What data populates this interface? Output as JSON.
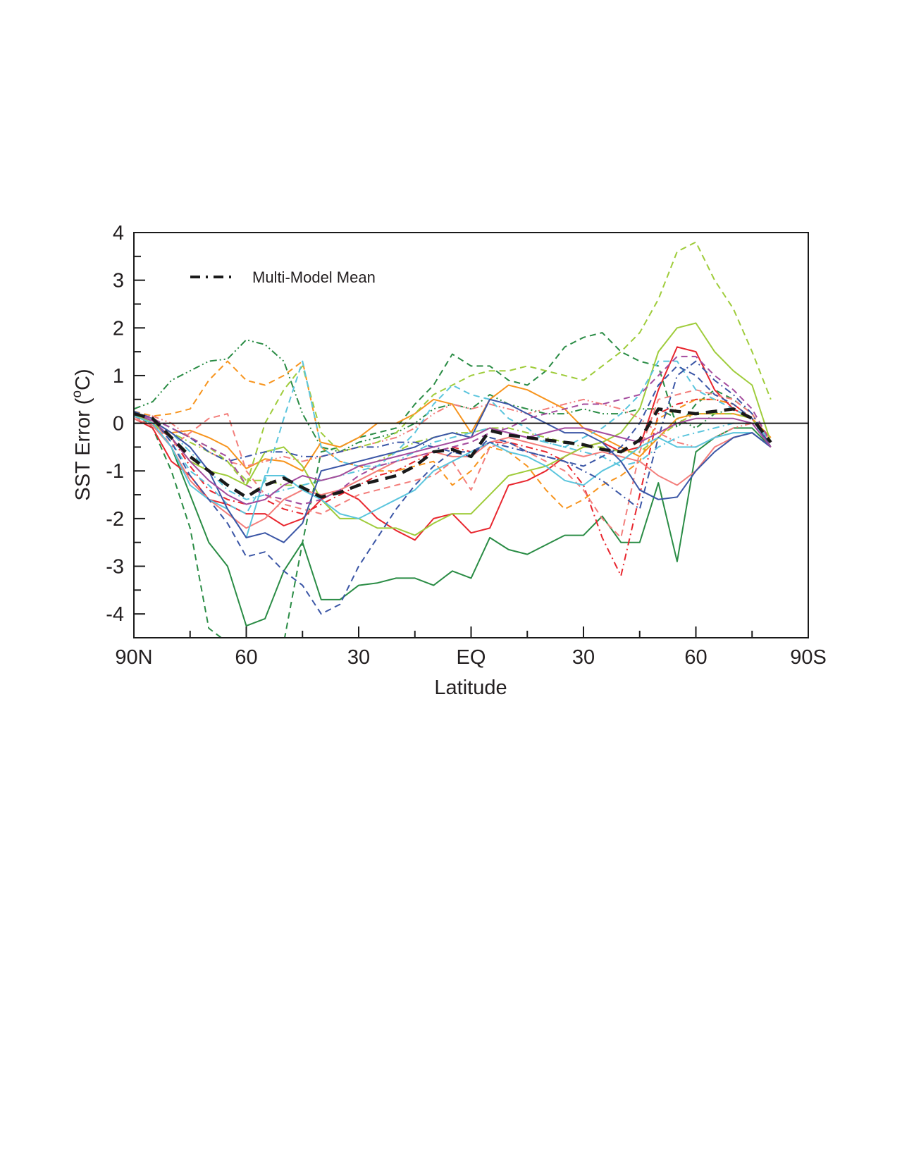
{
  "chart_data": {
    "type": "line",
    "xlabel": "Latitude",
    "ylabel_main": "SST Error (",
    "ylabel_sup": "o",
    "ylabel_end": "C)",
    "xlim": [
      90,
      -90
    ],
    "ylim": [
      -4.5,
      4
    ],
    "x_ticks": [
      {
        "value": 90,
        "label": "90N"
      },
      {
        "value": 60,
        "label": "60"
      },
      {
        "value": 30,
        "label": "30"
      },
      {
        "value": 0,
        "label": "EQ"
      },
      {
        "value": -30,
        "label": "30"
      },
      {
        "value": -60,
        "label": "60"
      },
      {
        "value": -90,
        "label": "90S"
      }
    ],
    "y_ticks": [
      {
        "value": 4,
        "label": "4"
      },
      {
        "value": 3,
        "label": "3"
      },
      {
        "value": 2,
        "label": "2"
      },
      {
        "value": 1,
        "label": "1"
      },
      {
        "value": 0,
        "label": "0"
      },
      {
        "value": -1,
        "label": "-1"
      },
      {
        "value": -2,
        "label": "-2"
      },
      {
        "value": -3,
        "label": "-3"
      },
      {
        "value": -4,
        "label": "-4"
      }
    ],
    "legend": {
      "label": "Multi-Model Mean",
      "position": "top-left"
    },
    "x": [
      90,
      85,
      80,
      75,
      70,
      65,
      60,
      55,
      50,
      45,
      40,
      35,
      30,
      25,
      20,
      15,
      10,
      5,
      0,
      -5,
      -10,
      -15,
      -20,
      -25,
      -30,
      -35,
      -40,
      -45,
      -50,
      -55,
      -60,
      -65,
      -70,
      -75,
      -80
    ],
    "mean": {
      "color": "#1a1a1a",
      "style": "dashed-bold",
      "values": [
        0.2,
        0.1,
        -0.3,
        -0.7,
        -1.0,
        -1.3,
        -1.55,
        -1.3,
        -1.15,
        -1.35,
        -1.55,
        -1.45,
        -1.3,
        -1.2,
        -1.1,
        -0.9,
        -0.6,
        -0.55,
        -0.7,
        -0.15,
        -0.25,
        -0.3,
        -0.35,
        -0.4,
        -0.45,
        -0.55,
        -0.6,
        -0.35,
        0.3,
        0.25,
        0.2,
        0.25,
        0.3,
        0.1,
        -0.4
      ]
    },
    "series": [
      {
        "color": "#2a8c45",
        "style": "solid",
        "values": [
          0.2,
          0.0,
          -0.5,
          -1.5,
          -2.5,
          -3.0,
          -4.25,
          -4.1,
          -3.1,
          -2.5,
          -3.7,
          -3.7,
          -3.4,
          -3.35,
          -3.25,
          -3.25,
          -3.4,
          -3.1,
          -3.25,
          -2.4,
          -2.65,
          -2.75,
          -2.55,
          -2.35,
          -2.35,
          -1.95,
          -2.5,
          -2.5,
          -1.25,
          -2.9,
          -0.6,
          -0.3,
          -0.1,
          -0.1,
          -0.5
        ]
      },
      {
        "color": "#2a8c45",
        "style": "dashed",
        "values": [
          0.25,
          -0.1,
          -1.0,
          -2.2,
          -4.3,
          -4.6,
          -4.6,
          -4.6,
          -4.6,
          -2.5,
          -0.6,
          -0.5,
          -0.3,
          -0.2,
          -0.1,
          0.4,
          0.8,
          1.45,
          1.2,
          1.2,
          0.9,
          0.8,
          1.1,
          1.6,
          1.8,
          1.9,
          1.5,
          1.3,
          1.2,
          -0.1,
          0.4,
          0.7,
          0.5,
          0.2,
          -0.4
        ]
      },
      {
        "color": "#2a8c45",
        "style": "dashdotdot",
        "values": [
          0.3,
          0.45,
          0.9,
          1.1,
          1.3,
          1.35,
          1.75,
          1.65,
          1.3,
          0.2,
          -0.5,
          -0.6,
          -0.4,
          -0.3,
          -0.2,
          0.0,
          0.3,
          0.4,
          0.3,
          0.6,
          0.4,
          0.3,
          0.2,
          0.2,
          0.3,
          0.2,
          0.2,
          0.3,
          0.3,
          0.1,
          -0.1,
          0.2,
          0.3,
          0.1,
          -0.4
        ]
      },
      {
        "color": "#e8262e",
        "style": "solid",
        "values": [
          0.1,
          -0.1,
          -0.8,
          -1.1,
          -1.6,
          -1.7,
          -1.9,
          -1.9,
          -2.15,
          -2.0,
          -1.6,
          -1.4,
          -1.6,
          -2.0,
          -2.25,
          -2.45,
          -2.0,
          -1.9,
          -2.3,
          -2.2,
          -1.3,
          -1.2,
          -1.0,
          -0.7,
          -0.5,
          -0.4,
          -0.6,
          -0.5,
          0.7,
          1.6,
          1.5,
          0.7,
          0.3,
          0.1,
          -0.5
        ]
      },
      {
        "color": "#e8262e",
        "style": "dashdot",
        "values": [
          0.15,
          -0.05,
          -0.3,
          -0.9,
          -1.4,
          -1.6,
          -1.7,
          -1.6,
          -1.8,
          -1.9,
          -1.7,
          -1.5,
          -1.3,
          -1.1,
          -1.0,
          -0.8,
          -0.6,
          -0.5,
          -0.6,
          -0.4,
          -0.4,
          -0.5,
          -0.6,
          -0.8,
          -1.3,
          -2.4,
          -3.2,
          -1.5,
          0.2,
          0.4,
          0.5,
          0.5,
          0.4,
          0.1,
          -0.5
        ]
      },
      {
        "color": "#f7941d",
        "style": "solid",
        "values": [
          0.2,
          0.05,
          -0.2,
          -0.15,
          -0.3,
          -0.5,
          -0.95,
          -0.75,
          -0.8,
          -1.0,
          -0.4,
          -0.5,
          -0.3,
          0.0,
          0.0,
          0.2,
          0.5,
          0.4,
          -0.2,
          0.5,
          0.8,
          0.7,
          0.5,
          0.3,
          -0.1,
          -0.3,
          -0.5,
          -0.7,
          -0.3,
          0.1,
          0.2,
          0.2,
          0.2,
          0.1,
          -0.3
        ]
      },
      {
        "color": "#f7941d",
        "style": "dashed",
        "values": [
          0.25,
          0.15,
          0.2,
          0.3,
          0.9,
          1.3,
          0.9,
          0.8,
          1.0,
          1.3,
          -0.5,
          -0.8,
          -0.9,
          -1.0,
          -1.0,
          -0.9,
          -0.8,
          -1.3,
          -1.0,
          -0.5,
          -0.6,
          -0.9,
          -1.4,
          -1.8,
          -1.6,
          -1.3,
          -1.1,
          -0.8,
          0.1,
          0.3,
          0.5,
          0.5,
          0.4,
          0.1,
          -0.4
        ]
      },
      {
        "color": "#f37e7b",
        "style": "solid",
        "values": [
          0.1,
          -0.05,
          -0.5,
          -1.2,
          -1.6,
          -1.9,
          -2.2,
          -2.0,
          -1.6,
          -1.4,
          -1.5,
          -1.4,
          -1.2,
          -1.0,
          -0.8,
          -0.7,
          -0.6,
          -0.7,
          -0.7,
          -0.4,
          -0.3,
          -0.4,
          -0.5,
          -0.6,
          -0.7,
          -0.6,
          -0.7,
          -0.8,
          -1.1,
          -1.3,
          -1.0,
          -0.5,
          -0.3,
          -0.2,
          -0.5
        ]
      },
      {
        "color": "#f37e7b",
        "style": "dashed",
        "values": [
          0.2,
          0.1,
          -0.5,
          -0.2,
          0.1,
          0.2,
          -1.0,
          -1.5,
          -1.7,
          -1.8,
          -1.9,
          -1.7,
          -1.5,
          -1.4,
          -1.3,
          -1.2,
          -1.1,
          -0.8,
          -1.4,
          -0.5,
          -0.4,
          -0.6,
          -0.8,
          -1.0,
          -1.4,
          -2.0,
          -2.4,
          -0.6,
          0.5,
          0.6,
          0.7,
          0.6,
          0.5,
          0.2,
          -0.4
        ]
      },
      {
        "color": "#f37e7b",
        "style": "dashdotdot",
        "values": [
          0.2,
          0.15,
          0.0,
          -0.3,
          -0.6,
          -0.8,
          -0.9,
          -0.8,
          -0.7,
          -0.8,
          -0.7,
          -0.6,
          -0.5,
          -0.4,
          -0.3,
          -0.1,
          0.2,
          0.4,
          0.3,
          0.4,
          0.3,
          0.2,
          0.3,
          0.4,
          0.5,
          0.4,
          0.3,
          0.1,
          -0.2,
          -0.4,
          -0.5,
          -0.3,
          -0.1,
          0.0,
          -0.4
        ]
      },
      {
        "color": "#9fcc3b",
        "style": "solid",
        "values": [
          0.2,
          0.0,
          -0.3,
          -0.8,
          -1.0,
          -1.1,
          -1.3,
          -0.6,
          -0.5,
          -0.9,
          -1.6,
          -2.0,
          -2.0,
          -2.2,
          -2.2,
          -2.35,
          -2.1,
          -1.9,
          -1.9,
          -1.5,
          -1.1,
          -1.0,
          -0.9,
          -0.7,
          -0.5,
          -0.4,
          -0.2,
          0.3,
          1.5,
          2.0,
          2.1,
          1.5,
          1.1,
          0.8,
          -0.4
        ]
      },
      {
        "color": "#9fcc3b",
        "style": "dashed",
        "values": [
          0.2,
          0.1,
          -0.1,
          -0.3,
          -0.5,
          -0.8,
          -1.3,
          0.0,
          0.7,
          1.2,
          -0.2,
          -0.6,
          -0.5,
          -0.4,
          -0.2,
          0.2,
          0.6,
          0.8,
          1.0,
          1.1,
          1.1,
          1.2,
          1.1,
          1.0,
          0.9,
          1.2,
          1.5,
          1.9,
          2.6,
          3.6,
          3.8,
          3.0,
          2.4,
          1.5,
          0.5
        ]
      },
      {
        "color": "#9fcc3b",
        "style": "dashdot",
        "values": [
          0.15,
          0.05,
          -0.2,
          -0.4,
          -0.6,
          -0.8,
          -1.2,
          -1.2,
          -1.3,
          -1.3,
          -1.2,
          -1.1,
          -0.9,
          -0.8,
          -0.6,
          -0.4,
          -0.3,
          -0.2,
          -0.2,
          -0.1,
          -0.1,
          -0.2,
          -0.3,
          -0.4,
          -0.5,
          -0.5,
          -0.6,
          -0.6,
          -0.3,
          0.0,
          0.2,
          0.2,
          0.2,
          0.1,
          -0.5
        ]
      },
      {
        "color": "#5bc5dd",
        "style": "solid",
        "values": [
          0.15,
          0.0,
          -0.5,
          -1.3,
          -1.6,
          -1.8,
          -2.4,
          -1.1,
          -1.1,
          -1.4,
          -1.6,
          -1.9,
          -2.0,
          -1.8,
          -1.6,
          -1.4,
          -1.0,
          -0.8,
          -0.6,
          -0.4,
          -0.6,
          -0.7,
          -0.9,
          -1.2,
          -1.3,
          -1.0,
          -0.8,
          -0.5,
          -0.3,
          -0.5,
          -0.5,
          -0.3,
          -0.2,
          -0.2,
          -0.5
        ]
      },
      {
        "color": "#5bc5dd",
        "style": "dashed",
        "values": [
          0.2,
          0.1,
          -0.4,
          -1.0,
          -1.3,
          -1.7,
          -1.9,
          -1.2,
          0.1,
          1.3,
          -0.5,
          -0.8,
          -0.9,
          -0.9,
          -0.6,
          -0.2,
          0.4,
          0.8,
          0.6,
          0.5,
          0.1,
          -0.1,
          -0.4,
          -0.5,
          -0.3,
          -0.1,
          0.2,
          0.6,
          1.3,
          1.3,
          0.7,
          0.5,
          0.3,
          0.1,
          -0.4
        ]
      },
      {
        "color": "#5bc5dd",
        "style": "dashdot",
        "values": [
          0.2,
          0.05,
          -0.2,
          -0.6,
          -1.0,
          -1.4,
          -1.6,
          -1.5,
          -1.4,
          -1.3,
          -1.2,
          -1.1,
          -1.0,
          -0.9,
          -0.8,
          -0.6,
          -0.4,
          -0.3,
          -0.2,
          -0.1,
          -0.2,
          -0.3,
          -0.4,
          -0.5,
          -0.6,
          -0.7,
          -0.9,
          -0.8,
          -0.5,
          -0.3,
          -0.2,
          -0.1,
          0.0,
          0.0,
          -0.4
        ]
      },
      {
        "color": "#3b56a6",
        "style": "solid",
        "values": [
          0.2,
          0.05,
          -0.2,
          -0.5,
          -1.0,
          -1.8,
          -2.4,
          -2.3,
          -2.5,
          -2.1,
          -1.0,
          -0.9,
          -0.8,
          -0.7,
          -0.6,
          -0.5,
          -0.3,
          -0.2,
          -0.3,
          0.5,
          0.4,
          0.2,
          0.0,
          -0.2,
          -0.2,
          -0.4,
          -0.8,
          -1.4,
          -1.6,
          -1.55,
          -1.0,
          -0.6,
          -0.3,
          -0.2,
          -0.5
        ]
      },
      {
        "color": "#3b56a6",
        "style": "dashed",
        "values": [
          0.25,
          0.1,
          -0.4,
          -1.1,
          -1.6,
          -2.1,
          -2.8,
          -2.7,
          -3.1,
          -3.4,
          -4.0,
          -3.8,
          -3.0,
          -2.4,
          -1.8,
          -1.3,
          -0.9,
          -0.6,
          -0.7,
          -0.3,
          -0.4,
          -0.6,
          -0.7,
          -0.8,
          -0.9,
          -0.7,
          -0.5,
          0.0,
          0.8,
          1.2,
          1.0,
          0.6,
          0.4,
          0.1,
          -0.5
        ]
      },
      {
        "color": "#3b56a6",
        "style": "dashdot",
        "values": [
          0.2,
          0.1,
          -0.1,
          -0.3,
          -0.6,
          -0.8,
          -0.7,
          -0.6,
          -0.6,
          -0.7,
          -0.7,
          -0.6,
          -0.5,
          -0.5,
          -0.4,
          -0.4,
          -0.5,
          -0.6,
          -0.6,
          -0.4,
          -0.5,
          -0.6,
          -0.7,
          -0.8,
          -1.0,
          -1.2,
          -1.5,
          -1.8,
          -0.3,
          1.0,
          1.3,
          0.9,
          0.6,
          0.2,
          -0.5
        ]
      },
      {
        "color": "#a44c9e",
        "style": "solid",
        "values": [
          0.2,
          0.05,
          -0.3,
          -0.8,
          -1.2,
          -1.5,
          -1.7,
          -1.6,
          -1.3,
          -1.1,
          -1.2,
          -1.1,
          -0.9,
          -0.8,
          -0.7,
          -0.6,
          -0.5,
          -0.4,
          -0.3,
          -0.1,
          -0.2,
          -0.3,
          -0.2,
          -0.1,
          -0.1,
          -0.2,
          -0.3,
          -0.4,
          -0.2,
          0.0,
          0.1,
          0.1,
          0.1,
          0.0,
          -0.5
        ]
      },
      {
        "color": "#a44c9e",
        "style": "dashed",
        "values": [
          0.2,
          0.1,
          -0.1,
          -0.3,
          -0.5,
          -0.7,
          -1.3,
          -1.5,
          -1.6,
          -1.7,
          -1.6,
          -1.4,
          -1.1,
          -0.9,
          -0.8,
          -0.7,
          -0.6,
          -0.5,
          -0.4,
          -0.2,
          -0.1,
          0.1,
          0.2,
          0.3,
          0.4,
          0.4,
          0.5,
          0.6,
          1.0,
          1.4,
          1.4,
          1.0,
          0.7,
          0.3,
          -0.4
        ]
      }
    ]
  }
}
